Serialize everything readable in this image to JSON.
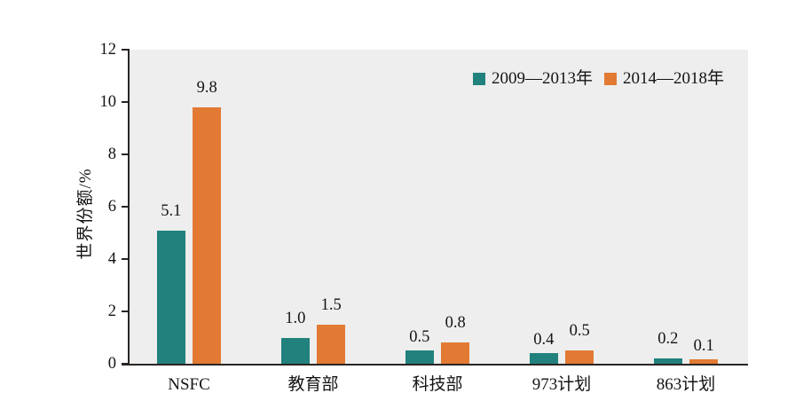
{
  "chart_data": {
    "type": "bar",
    "title": "",
    "categories": [
      "NSFC",
      "教育部",
      "科技部",
      "973计划",
      "863计划"
    ],
    "series": [
      {
        "name": "2009—2013年",
        "color": "#21817d",
        "values": [
          5.1,
          1.0,
          0.5,
          0.4,
          0.2
        ]
      },
      {
        "name": "2014—2018年",
        "color": "#e27a33",
        "values": [
          9.8,
          1.5,
          0.8,
          0.5,
          0.1
        ]
      }
    ],
    "xlabel": "",
    "ylabel": "世界份额/%",
    "ylim": [
      0,
      12
    ],
    "yticks": [
      0,
      2,
      4,
      6,
      8,
      10,
      12
    ],
    "grid": false,
    "value_labels_shown": true,
    "legend_position": "top-right inside plot",
    "colors": {
      "plot_background": "#edeeed",
      "page_background": "#ffffff",
      "axis": "#2a2523",
      "text": "#141416"
    }
  }
}
